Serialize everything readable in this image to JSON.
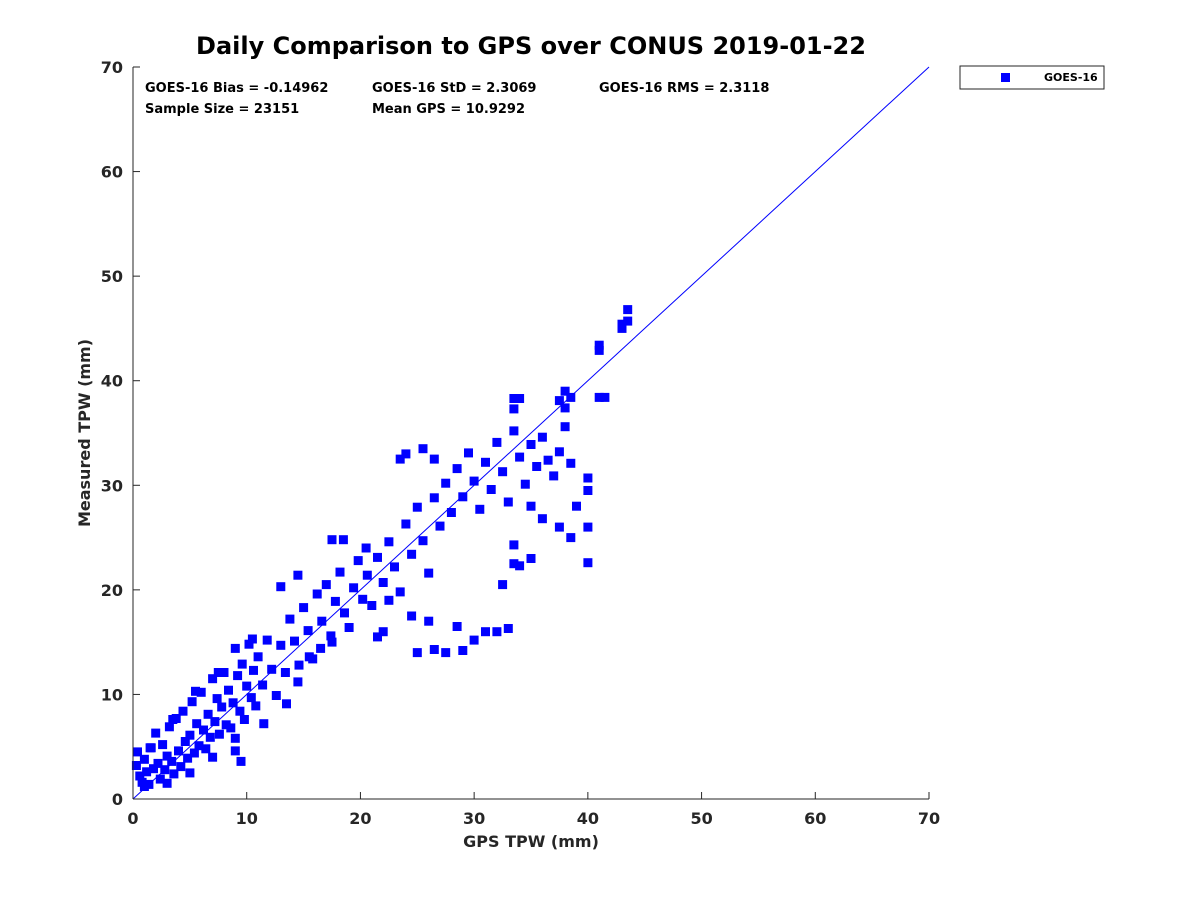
{
  "chart_data": {
    "type": "scatter",
    "title": "Daily Comparison to GPS over CONUS 2019-01-22",
    "xlabel": "GPS TPW (mm)",
    "ylabel": "Measured TPW (mm)",
    "xlim": [
      0,
      70
    ],
    "ylim": [
      0,
      70
    ],
    "xticks": [
      "0",
      "10",
      "20",
      "30",
      "40",
      "50",
      "60",
      "70"
    ],
    "yticks": [
      "0",
      "10",
      "20",
      "30",
      "40",
      "50",
      "60",
      "70"
    ],
    "grid": false,
    "legend_position": "outside-top-right",
    "stats": {
      "bias": "GOES-16 Bias = -0.14962",
      "std": "GOES-16 StD = 2.3069",
      "rms": "GOES-16 RMS = 2.3118",
      "sample": "Sample Size = 23151",
      "mean": "Mean GPS = 10.9292"
    },
    "reference_line": {
      "name": "1:1 line",
      "from": [
        0,
        0
      ],
      "to": [
        70,
        70
      ],
      "color": "#0000ff"
    },
    "series": [
      {
        "name": "GOES-16",
        "color": "#0000ff",
        "marker": "square",
        "points": [
          [
            0.3,
            3.2
          ],
          [
            0.4,
            4.5
          ],
          [
            0.6,
            2.2
          ],
          [
            0.8,
            1.6
          ],
          [
            1.0,
            3.8
          ],
          [
            1.2,
            2.6
          ],
          [
            1.4,
            1.4
          ],
          [
            1.6,
            4.9
          ],
          [
            1.8,
            2.9
          ],
          [
            2.0,
            6.3
          ],
          [
            2.2,
            3.4
          ],
          [
            2.4,
            1.9
          ],
          [
            2.6,
            5.2
          ],
          [
            2.8,
            2.8
          ],
          [
            3.0,
            4.1
          ],
          [
            3.2,
            6.9
          ],
          [
            3.4,
            3.6
          ],
          [
            3.6,
            2.4
          ],
          [
            3.8,
            7.7
          ],
          [
            4.0,
            4.6
          ],
          [
            4.2,
            3.1
          ],
          [
            4.4,
            8.4
          ],
          [
            4.6,
            5.5
          ],
          [
            4.8,
            3.9
          ],
          [
            5.0,
            6.1
          ],
          [
            5.2,
            9.3
          ],
          [
            5.4,
            4.4
          ],
          [
            5.6,
            7.2
          ],
          [
            5.8,
            5.1
          ],
          [
            6.0,
            10.2
          ],
          [
            6.2,
            6.6
          ],
          [
            6.4,
            4.8
          ],
          [
            6.6,
            8.1
          ],
          [
            6.8,
            5.9
          ],
          [
            7.0,
            11.5
          ],
          [
            7.2,
            7.4
          ],
          [
            7.4,
            9.6
          ],
          [
            7.6,
            6.2
          ],
          [
            7.8,
            8.8
          ],
          [
            8.0,
            12.1
          ],
          [
            8.2,
            7.1
          ],
          [
            8.4,
            10.4
          ],
          [
            8.6,
            6.8
          ],
          [
            8.8,
            9.2
          ],
          [
            9.0,
            4.6
          ],
          [
            9.2,
            11.8
          ],
          [
            9.4,
            8.4
          ],
          [
            9.6,
            12.9
          ],
          [
            9.8,
            7.6
          ],
          [
            10.0,
            10.8
          ],
          [
            10.2,
            14.8
          ],
          [
            10.4,
            9.7
          ],
          [
            10.6,
            12.3
          ],
          [
            10.8,
            8.9
          ],
          [
            11.0,
            13.6
          ],
          [
            11.4,
            10.9
          ],
          [
            11.8,
            15.2
          ],
          [
            12.2,
            12.4
          ],
          [
            12.6,
            9.9
          ],
          [
            13.0,
            14.7
          ],
          [
            13.4,
            12.1
          ],
          [
            13.8,
            17.2
          ],
          [
            14.2,
            15.1
          ],
          [
            14.6,
            12.8
          ],
          [
            15.0,
            18.3
          ],
          [
            15.4,
            16.1
          ],
          [
            15.8,
            13.4
          ],
          [
            16.2,
            19.6
          ],
          [
            16.6,
            17.0
          ],
          [
            17.0,
            20.5
          ],
          [
            17.4,
            15.6
          ],
          [
            17.8,
            18.9
          ],
          [
            18.2,
            21.7
          ],
          [
            18.6,
            17.8
          ],
          [
            19.0,
            16.4
          ],
          [
            19.4,
            20.2
          ],
          [
            19.8,
            22.8
          ],
          [
            20.2,
            19.1
          ],
          [
            20.6,
            21.4
          ],
          [
            21.0,
            18.5
          ],
          [
            21.5,
            23.1
          ],
          [
            22.0,
            20.7
          ],
          [
            22.5,
            24.6
          ],
          [
            23.0,
            22.2
          ],
          [
            23.5,
            19.8
          ],
          [
            24.0,
            26.3
          ],
          [
            24.5,
            23.4
          ],
          [
            25.0,
            27.9
          ],
          [
            25.5,
            24.7
          ],
          [
            26.0,
            21.6
          ],
          [
            26.5,
            28.8
          ],
          [
            27.0,
            26.1
          ],
          [
            27.5,
            30.2
          ],
          [
            28.0,
            27.4
          ],
          [
            28.5,
            31.6
          ],
          [
            29.0,
            28.9
          ],
          [
            29.5,
            33.1
          ],
          [
            30.0,
            30.4
          ],
          [
            30.5,
            27.7
          ],
          [
            31.0,
            32.2
          ],
          [
            31.5,
            29.6
          ],
          [
            32.0,
            34.1
          ],
          [
            32.5,
            31.3
          ],
          [
            33.0,
            28.4
          ],
          [
            33.5,
            35.2
          ],
          [
            34.0,
            32.7
          ],
          [
            34.5,
            30.1
          ],
          [
            35.0,
            33.9
          ],
          [
            35.5,
            31.8
          ],
          [
            36.0,
            34.6
          ],
          [
            36.5,
            32.4
          ],
          [
            37.0,
            30.9
          ],
          [
            37.5,
            33.2
          ],
          [
            38.0,
            35.6
          ],
          [
            38.5,
            32.1
          ],
          [
            1.0,
            1.2
          ],
          [
            3.0,
            1.5
          ],
          [
            5.0,
            2.5
          ],
          [
            7.0,
            4.0
          ],
          [
            9.0,
            5.8
          ],
          [
            9.5,
            3.6
          ],
          [
            11.5,
            7.2
          ],
          [
            13.5,
            9.1
          ],
          [
            14.5,
            11.2
          ],
          [
            15.5,
            13.6
          ],
          [
            16.5,
            14.4
          ],
          [
            17.5,
            15.0
          ],
          [
            1.5,
            4.9
          ],
          [
            3.5,
            7.6
          ],
          [
            5.5,
            10.3
          ],
          [
            7.5,
            12.1
          ],
          [
            9.0,
            14.4
          ],
          [
            10.5,
            15.3
          ],
          [
            13.0,
            20.3
          ],
          [
            14.5,
            21.4
          ],
          [
            17.5,
            24.8
          ],
          [
            18.5,
            24.8
          ],
          [
            35.0,
            23.0
          ],
          [
            34.0,
            22.3
          ],
          [
            33.5,
            22.5
          ],
          [
            33.0,
            16.3
          ],
          [
            32.0,
            16.0
          ],
          [
            31.0,
            16.0
          ],
          [
            30.0,
            15.2
          ],
          [
            29.0,
            14.2
          ],
          [
            27.5,
            14.0
          ],
          [
            26.5,
            14.3
          ],
          [
            25.0,
            14.0
          ],
          [
            28.5,
            16.5
          ],
          [
            32.5,
            20.5
          ],
          [
            33.5,
            24.3
          ],
          [
            35.0,
            28.0
          ],
          [
            36.0,
            26.8
          ],
          [
            37.5,
            26.0
          ],
          [
            38.5,
            25.0
          ],
          [
            39.0,
            28.0
          ],
          [
            40.0,
            22.6
          ],
          [
            40.0,
            26.0
          ],
          [
            40.0,
            29.5
          ],
          [
            40.0,
            30.7
          ],
          [
            38.0,
            37.4
          ],
          [
            37.5,
            38.1
          ],
          [
            38.0,
            39.0
          ],
          [
            38.5,
            38.4
          ],
          [
            33.5,
            37.3
          ],
          [
            33.5,
            38.3
          ],
          [
            34.0,
            38.3
          ],
          [
            41.0,
            38.4
          ],
          [
            41.5,
            38.4
          ],
          [
            41.0,
            42.9
          ],
          [
            41.0,
            43.4
          ],
          [
            43.0,
            45.0
          ],
          [
            43.0,
            45.4
          ],
          [
            43.5,
            45.7
          ],
          [
            43.5,
            46.8
          ],
          [
            24.0,
            33.0
          ],
          [
            25.5,
            33.5
          ],
          [
            26.5,
            32.5
          ],
          [
            23.5,
            32.5
          ],
          [
            20.5,
            24.0
          ],
          [
            22.5,
            19.0
          ],
          [
            22.0,
            16.0
          ],
          [
            21.5,
            15.5
          ],
          [
            24.5,
            17.5
          ],
          [
            26.0,
            17.0
          ]
        ]
      }
    ]
  }
}
